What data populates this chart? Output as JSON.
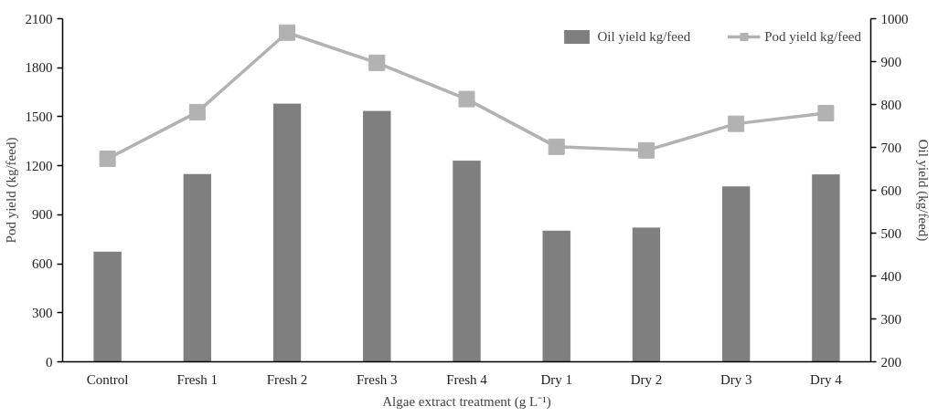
{
  "chart_data": {
    "type": "bar",
    "xlabel": "Algae extract treatment (g L⁻¹)",
    "ylabel": "Pod yield (kg/feed)",
    "y2label": "Oil yield (kg/feed)",
    "categories": [
      "Control",
      "Fresh 1",
      "Fresh 2",
      "Fresh 3",
      "Fresh 4",
      "Dry 1",
      "Dry 2",
      "Dry 3",
      "Dry 4"
    ],
    "series": [
      {
        "name": "Oil yield kg/feed",
        "axis": "y2",
        "color": "#7f7f7f",
        "values": [
          458,
          639,
          803,
          786,
          670,
          507,
          514,
          610,
          638
        ]
      },
      {
        "name": "Pod yield kg/feed",
        "type": "line",
        "color": "#b2b2b2",
        "marker": "square",
        "values": [
          1243,
          1528,
          2015,
          1830,
          1608,
          1316,
          1294,
          1457,
          1522
        ]
      }
    ],
    "ylim": [
      0,
      2100
    ],
    "yticks": [
      0,
      300,
      600,
      900,
      1200,
      1500,
      1800,
      2100
    ],
    "y2lim": [
      200,
      1000
    ],
    "y2ticks": [
      200,
      300,
      400,
      500,
      600,
      700,
      800,
      900,
      1000
    ],
    "grid": false,
    "legend": "top right"
  }
}
